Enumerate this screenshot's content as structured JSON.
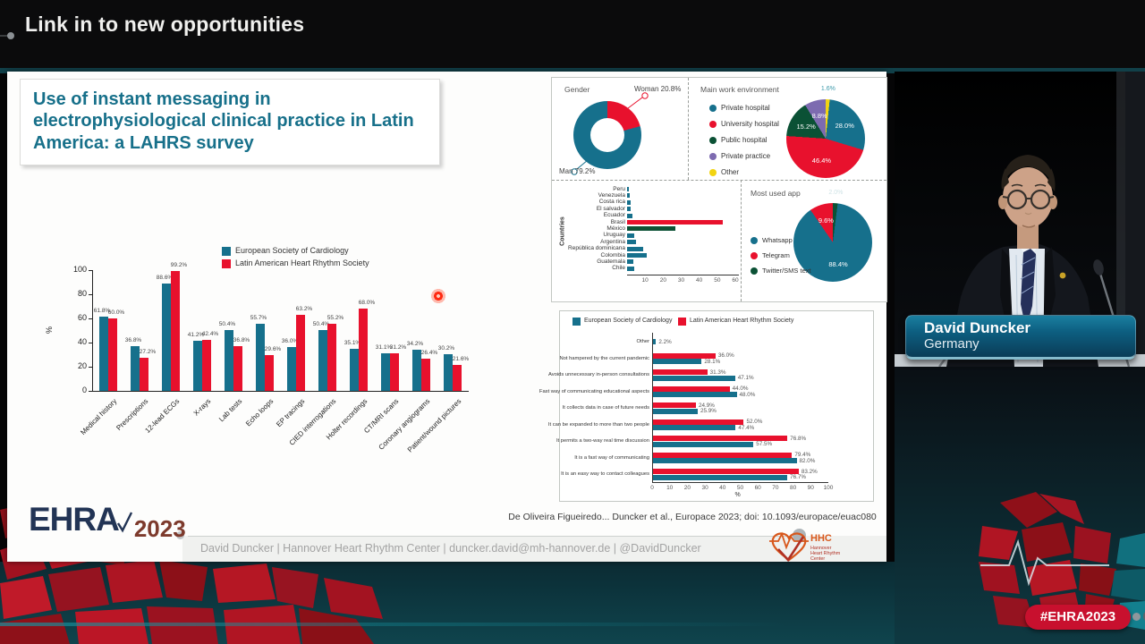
{
  "header": {
    "title": "Link in to new opportunities"
  },
  "slide": {
    "title": "Use of instant messaging in electrophysiological clinical practice in Latin America: a LAHRS survey",
    "citation": "De Oliveira Figueiredo... Duncker et al., Europace 2023; doi:  10.1093/europace/euac080",
    "footer_line": "David Duncker | Hannover Heart Rhythm Center | duncker.david@mh-hannover.de | @DavidDuncker",
    "ehra_logo": {
      "name": "EHRA",
      "year": "2023"
    },
    "hhc_logo": {
      "abbr": "HHC",
      "caption": "Hannover Heart Rhythm Center"
    }
  },
  "video_overlay": {
    "speaker_name": "David Duncker",
    "speaker_country": "Germany"
  },
  "hashtag_badge": "#EHRA2023",
  "colors": {
    "esc_teal": "#16708c",
    "lahrs_red": "#e8112d",
    "dark_green": "#0b5135",
    "purple": "#7d6bb0",
    "yellow": "#f2d411"
  },
  "chart_data": [
    {
      "id": "shared_items",
      "type": "bar",
      "title": "",
      "ylabel": "%",
      "ylim": [
        0,
        100
      ],
      "yticks": [
        0,
        20,
        40,
        60,
        80,
        100
      ],
      "legend_position": "top-right",
      "categories": [
        "Medical history",
        "Prescriptions",
        "12-lead ECGs",
        "X-rays",
        "Lab tests",
        "Echo loops",
        "EP tracings",
        "CIED interrogations",
        "Holter recordings",
        "CT/MRI scans",
        "Coronary angiograms",
        "Patient/wound pictures"
      ],
      "series": [
        {
          "name": "European Society of Cardiology",
          "color": "#16708c",
          "values": [
            61.8,
            36.8,
            88.6,
            41.2,
            50.4,
            55.7,
            36.0,
            50.4,
            35.1,
            31.1,
            34.2,
            30.2
          ]
        },
        {
          "name": "Latin American Heart Rhythm Society",
          "color": "#e8112d",
          "values": [
            60.0,
            27.2,
            99.2,
            42.4,
            36.8,
            29.6,
            63.2,
            55.2,
            68.0,
            31.2,
            26.4,
            21.6
          ]
        }
      ]
    },
    {
      "id": "gender",
      "type": "pie",
      "title": "Gender",
      "style": "donut",
      "slices": [
        {
          "label": "Woman",
          "value": 20.8,
          "color": "#e8112d"
        },
        {
          "label": "Man",
          "value": 79.2,
          "color": "#16708c"
        }
      ]
    },
    {
      "id": "work_environment",
      "type": "pie",
      "title": "Main work environment",
      "legend_position": "left",
      "slices": [
        {
          "label": "Private hospital",
          "value": 28.0,
          "color": "#16708c"
        },
        {
          "label": "University hospital",
          "value": 46.4,
          "color": "#e8112d"
        },
        {
          "label": "Public hospital",
          "value": 15.2,
          "color": "#0b5135"
        },
        {
          "label": "Private practice",
          "value": 8.8,
          "color": "#7d6bb0"
        },
        {
          "label": "Other",
          "value": 1.6,
          "color": "#f2d411"
        }
      ]
    },
    {
      "id": "countries",
      "type": "bar",
      "orientation": "horizontal",
      "axis_label": "Countries",
      "xticks": [
        10,
        20,
        30,
        40,
        50,
        60
      ],
      "xlim": [
        0,
        62
      ],
      "categories": [
        "Peru",
        "Venezuela",
        "Costa rica",
        "El salvador",
        "Ecuador",
        "Brasil",
        "México",
        "Uruguay",
        "Argentina",
        "República dominicana",
        "Colombia",
        "Guatemala",
        "Chile"
      ],
      "values": [
        1.2,
        1.5,
        2,
        2,
        3,
        53,
        27,
        4,
        5,
        9,
        11,
        3.5,
        4
      ],
      "bar_colors": [
        "#16708c",
        "#16708c",
        "#16708c",
        "#16708c",
        "#16708c",
        "#e8112d",
        "#0b5135",
        "#16708c",
        "#16708c",
        "#16708c",
        "#16708c",
        "#16708c",
        "#16708c"
      ]
    },
    {
      "id": "most_used_app",
      "type": "pie",
      "title": "Most used app",
      "legend_position": "bottom-left",
      "slices": [
        {
          "label": "Twitter/SMS text",
          "value": 2.0,
          "color": "#0b5135"
        },
        {
          "label": "Whatsapp",
          "value": 88.4,
          "color": "#16708c"
        },
        {
          "label": "Telegram",
          "value": 9.6,
          "color": "#e8112d"
        }
      ],
      "legend_order": [
        "Whatsapp",
        "Telegram",
        "Twitter/SMS text"
      ]
    },
    {
      "id": "reasons",
      "type": "bar",
      "orientation": "horizontal",
      "xlabel": "%",
      "xlim": [
        0,
        100
      ],
      "xticks": [
        0,
        10,
        20,
        30,
        40,
        50,
        60,
        70,
        80,
        90,
        100
      ],
      "categories": [
        "Other",
        "Not hampered by the current pandemic",
        "Avoids unnecessary in-person consultations",
        "Fast way of communicating educational aspects",
        "It collects data in case of future needs",
        "It can be expanded to more than two people",
        "It permits a two-way real time discussion",
        "It is a fast way of communicating",
        "It is an easy way to contact colleagues"
      ],
      "series": [
        {
          "name": "Latin American Heart Rhythm Society",
          "color": "#e8112d",
          "values": [
            null,
            36.0,
            31.3,
            44.0,
            24.9,
            52.0,
            76.8,
            79.4,
            83.2
          ]
        },
        {
          "name": "European Society of Cardiology",
          "color": "#16708c",
          "values": [
            2.2,
            28.1,
            47.1,
            48.0,
            25.9,
            47.4,
            57.5,
            82.0,
            76.7
          ]
        }
      ],
      "legend": [
        "European Society of Cardiology",
        "Latin American Heart Rhythm Society"
      ]
    }
  ]
}
